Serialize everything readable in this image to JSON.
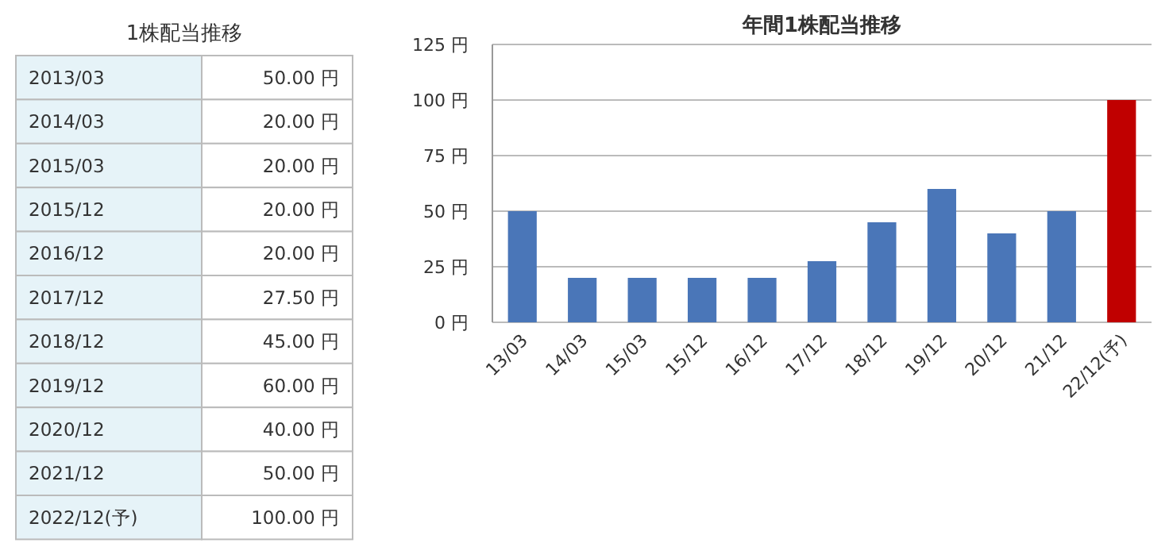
{
  "chart_data": [
    {
      "type": "other",
      "title": "1株配当推移",
      "categories": [
        "2013/03",
        "2014/03",
        "2015/03",
        "2015/12",
        "2016/12",
        "2017/12",
        "2018/12",
        "2019/12",
        "2020/12",
        "2021/12",
        "2022/12(予)"
      ],
      "value_labels": [
        "50.00 円",
        "20.00 円",
        "20.00 円",
        "20.00 円",
        "20.00 円",
        "27.50 円",
        "45.00 円",
        "60.00 円",
        "40.00 円",
        "50.00 円",
        "100.00 円"
      ]
    },
    {
      "type": "bar",
      "title": "年間1株配当推移",
      "categories": [
        "13/03",
        "14/03",
        "15/03",
        "15/12",
        "16/12",
        "17/12",
        "18/12",
        "19/12",
        "20/12",
        "21/12",
        "22/12(予)"
      ],
      "values": [
        50,
        20,
        20,
        20,
        20,
        27.5,
        45,
        60,
        40,
        50,
        100
      ],
      "colors": [
        "#4a76b8",
        "#4a76b8",
        "#4a76b8",
        "#4a76b8",
        "#4a76b8",
        "#4a76b8",
        "#4a76b8",
        "#4a76b8",
        "#4a76b8",
        "#4a76b8",
        "#c00000"
      ],
      "ylim": [
        0,
        125
      ],
      "yticks": [
        {
          "value": 0,
          "label": "0 円"
        },
        {
          "value": 25,
          "label": "25 円"
        },
        {
          "value": 50,
          "label": "50 円"
        },
        {
          "value": 75,
          "label": "75 円"
        },
        {
          "value": 100,
          "label": "100 円"
        },
        {
          "value": 125,
          "label": "125 円"
        }
      ],
      "grid": "y"
    }
  ]
}
